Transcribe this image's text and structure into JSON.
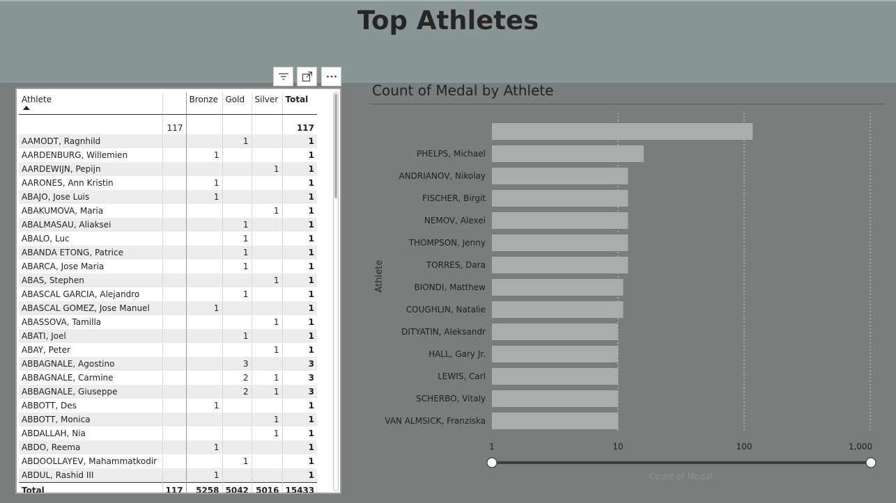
{
  "page": {
    "title": "Top Athletes"
  },
  "visual_header": {
    "icons": [
      "filter-icon",
      "focus-mode-icon",
      "more-options-icon"
    ]
  },
  "table": {
    "columns": {
      "athlete": "Athlete",
      "blank": "",
      "bronze": "Bronze",
      "gold": "Gold",
      "silver": "Silver",
      "total": "Total"
    },
    "rows": [
      {
        "athlete": "",
        "blank": "117",
        "bronze": "",
        "gold": "",
        "silver": "",
        "total": "117"
      },
      {
        "athlete": "AAMODT, Ragnhild",
        "blank": "",
        "bronze": "",
        "gold": "1",
        "silver": "",
        "total": "1"
      },
      {
        "athlete": "AARDENBURG, Willemien",
        "blank": "",
        "bronze": "1",
        "gold": "",
        "silver": "",
        "total": "1"
      },
      {
        "athlete": "AARDEWIJN, Pepijn",
        "blank": "",
        "bronze": "",
        "gold": "",
        "silver": "1",
        "total": "1"
      },
      {
        "athlete": "AARONES, Ann Kristin",
        "blank": "",
        "bronze": "1",
        "gold": "",
        "silver": "",
        "total": "1"
      },
      {
        "athlete": "ABAJO, Jose Luis",
        "blank": "",
        "bronze": "1",
        "gold": "",
        "silver": "",
        "total": "1"
      },
      {
        "athlete": "ABAKUMOVA, Maria",
        "blank": "",
        "bronze": "",
        "gold": "",
        "silver": "1",
        "total": "1"
      },
      {
        "athlete": "ABALMASAU, Aliaksei",
        "blank": "",
        "bronze": "",
        "gold": "1",
        "silver": "",
        "total": "1"
      },
      {
        "athlete": "ABALO, Luc",
        "blank": "",
        "bronze": "",
        "gold": "1",
        "silver": "",
        "total": "1"
      },
      {
        "athlete": "ABANDA ETONG, Patrice",
        "blank": "",
        "bronze": "",
        "gold": "1",
        "silver": "",
        "total": "1"
      },
      {
        "athlete": "ABARCA, Jose Maria",
        "blank": "",
        "bronze": "",
        "gold": "1",
        "silver": "",
        "total": "1"
      },
      {
        "athlete": "ABAS, Stephen",
        "blank": "",
        "bronze": "",
        "gold": "",
        "silver": "1",
        "total": "1"
      },
      {
        "athlete": "ABASCAL GARCIA, Alejandro",
        "blank": "",
        "bronze": "",
        "gold": "1",
        "silver": "",
        "total": "1"
      },
      {
        "athlete": "ABASCAL GOMEZ, Jose Manuel",
        "blank": "",
        "bronze": "1",
        "gold": "",
        "silver": "",
        "total": "1"
      },
      {
        "athlete": "ABASSOVA, Tamilla",
        "blank": "",
        "bronze": "",
        "gold": "",
        "silver": "1",
        "total": "1"
      },
      {
        "athlete": "ABATI, Joel",
        "blank": "",
        "bronze": "",
        "gold": "1",
        "silver": "",
        "total": "1"
      },
      {
        "athlete": "ABAY, Peter",
        "blank": "",
        "bronze": "",
        "gold": "",
        "silver": "1",
        "total": "1"
      },
      {
        "athlete": "ABBAGNALE, Agostino",
        "blank": "",
        "bronze": "",
        "gold": "3",
        "silver": "",
        "total": "3"
      },
      {
        "athlete": "ABBAGNALE, Carmine",
        "blank": "",
        "bronze": "",
        "gold": "2",
        "silver": "1",
        "total": "3"
      },
      {
        "athlete": "ABBAGNALE, Giuseppe",
        "blank": "",
        "bronze": "",
        "gold": "2",
        "silver": "1",
        "total": "3"
      },
      {
        "athlete": "ABBOTT, Des",
        "blank": "",
        "bronze": "1",
        "gold": "",
        "silver": "",
        "total": "1"
      },
      {
        "athlete": "ABBOTT, Monica",
        "blank": "",
        "bronze": "",
        "gold": "",
        "silver": "1",
        "total": "1"
      },
      {
        "athlete": "ABDALLAH, Nia",
        "blank": "",
        "bronze": "",
        "gold": "",
        "silver": "1",
        "total": "1"
      },
      {
        "athlete": "ABDO, Reema",
        "blank": "",
        "bronze": "1",
        "gold": "",
        "silver": "",
        "total": "1"
      },
      {
        "athlete": "ABDOOLLAYEV, Mahammatkodir",
        "blank": "",
        "bronze": "",
        "gold": "1",
        "silver": "",
        "total": "1"
      },
      {
        "athlete": "ABDUL, Rashid III",
        "blank": "",
        "bronze": "1",
        "gold": "",
        "silver": "",
        "total": "1"
      }
    ],
    "totals": {
      "athlete": "Total",
      "blank": "117",
      "bronze": "5258",
      "gold": "5042",
      "silver": "5016",
      "total": "15433"
    }
  },
  "chart_data": {
    "type": "bar",
    "orientation": "horizontal",
    "title": "Count of Medal by Athlete",
    "ylabel": "Athlete",
    "xlabel": "Count of Medal",
    "x_scale": "log",
    "xlim": [
      1,
      1000
    ],
    "x_ticks": [
      1,
      10,
      100,
      1000
    ],
    "x_tick_labels": [
      "1",
      "10",
      "100",
      "1,000"
    ],
    "grid": true,
    "bar_color": "#a8adad",
    "categories": [
      "",
      "PHELPS, Michael",
      "ANDRIANOV, Nikolay",
      "FISCHER, Birgit",
      "NEMOV, Alexei",
      "THOMPSON, Jenny",
      "TORRES, Dara",
      "BIONDI, Matthew",
      "COUGHLIN, Natalie",
      "DITYATIN, Aleksandr",
      "HALL, Gary Jr.",
      "LEWIS, Carl",
      "SCHERBO, Vitaly",
      "VAN ALMSICK, Franziska"
    ],
    "values": [
      117,
      16,
      12,
      12,
      12,
      12,
      12,
      11,
      11,
      10,
      10,
      10,
      10,
      10
    ],
    "slider_range": [
      1,
      1000
    ]
  }
}
